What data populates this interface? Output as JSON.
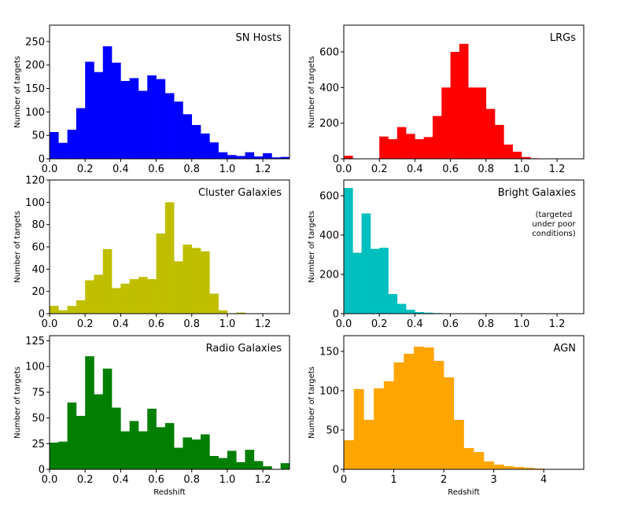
{
  "chart_data": [
    {
      "type": "bar",
      "title": "SN Hosts",
      "xlabel": "",
      "ylabel": "Number of targets",
      "xlim": [
        0,
        1.35
      ],
      "ylim": [
        0,
        285
      ],
      "bin_width": 0.05,
      "color": "#0000ff",
      "x_ticks": [
        "0.0",
        "0.2",
        "0.4",
        "0.6",
        "0.8",
        "1.0",
        "1.2"
      ],
      "y_ticks": [
        "0",
        "50",
        "100",
        "150",
        "200",
        "250"
      ],
      "values": [
        57,
        34,
        62,
        108,
        207,
        185,
        240,
        205,
        166,
        172,
        145,
        178,
        170,
        140,
        122,
        95,
        72,
        54,
        35,
        14,
        8,
        6,
        14,
        5,
        12,
        3,
        4
      ]
    },
    {
      "type": "bar",
      "title": "LRGs",
      "xlabel": "",
      "ylabel": "Number of targets",
      "xlim": [
        0,
        1.35
      ],
      "ylim": [
        0,
        750
      ],
      "bin_width": 0.05,
      "color": "#ff0000",
      "x_ticks": [
        "0.0",
        "0.2",
        "0.4",
        "0.6",
        "0.8",
        "1.0",
        "1.2"
      ],
      "y_ticks": [
        "0",
        "200",
        "400",
        "600"
      ],
      "values": [
        17,
        0,
        0,
        0,
        125,
        110,
        178,
        140,
        110,
        122,
        240,
        400,
        600,
        645,
        400,
        400,
        280,
        190,
        80,
        40,
        10,
        3,
        2,
        0,
        0,
        0,
        0
      ]
    },
    {
      "type": "bar",
      "title": "Cluster Galaxies",
      "xlabel": "",
      "ylabel": "Number of targets",
      "xlim": [
        0,
        1.35
      ],
      "ylim": [
        0,
        120
      ],
      "bin_width": 0.05,
      "color": "#bfbf00",
      "x_ticks": [
        "0.0",
        "0.2",
        "0.4",
        "0.6",
        "0.8",
        "1.0",
        "1.2"
      ],
      "y_ticks": [
        "0",
        "20",
        "40",
        "60",
        "80",
        "100",
        "120"
      ],
      "values": [
        7,
        3,
        7,
        12,
        30,
        35,
        58,
        23,
        27,
        31,
        33,
        31,
        72,
        100,
        47,
        62,
        59,
        56,
        18,
        3,
        0,
        1,
        0,
        0,
        0,
        0,
        0
      ]
    },
    {
      "type": "bar",
      "title": "Bright Galaxies",
      "annotation": "(targeted\nunder poor\nconditions)",
      "xlabel": "",
      "ylabel": "Number of targets",
      "xlim": [
        0,
        1.35
      ],
      "ylim": [
        0,
        680
      ],
      "bin_width": 0.05,
      "color": "#00bfbf",
      "x_ticks": [
        "0.0",
        "0.2",
        "0.4",
        "0.6",
        "0.8",
        "1.0",
        "1.2"
      ],
      "y_ticks": [
        "0",
        "200",
        "400",
        "600"
      ],
      "values": [
        640,
        310,
        510,
        330,
        335,
        100,
        50,
        20,
        8,
        5,
        3,
        2,
        1,
        1,
        1,
        0,
        0,
        0,
        0,
        0,
        0,
        0,
        0,
        0,
        0,
        0,
        0
      ]
    },
    {
      "type": "bar",
      "title": "Radio Galaxies",
      "xlabel": "Redshift",
      "ylabel": "Number of targets",
      "xlim": [
        0,
        1.35
      ],
      "ylim": [
        0,
        130
      ],
      "bin_width": 0.05,
      "color": "#007f00",
      "x_ticks": [
        "0.0",
        "0.2",
        "0.4",
        "0.6",
        "0.8",
        "1.0",
        "1.2"
      ],
      "y_ticks": [
        "0",
        "25",
        "50",
        "75",
        "100",
        "125"
      ],
      "values": [
        26,
        27,
        65,
        52,
        110,
        73,
        98,
        60,
        37,
        47,
        37,
        59,
        41,
        45,
        21,
        31,
        29,
        34,
        13,
        11,
        18,
        7,
        19,
        8,
        3,
        0,
        6
      ]
    },
    {
      "type": "bar",
      "title": "AGN",
      "xlabel": "Redshift",
      "ylabel": "Number of targets",
      "xlim": [
        0,
        4.8
      ],
      "ylim": [
        0,
        170
      ],
      "bin_width": 0.2,
      "color": "#ffa500",
      "x_ticks": [
        "0",
        "1",
        "2",
        "3",
        "4"
      ],
      "y_ticks": [
        "0",
        "50",
        "100",
        "150"
      ],
      "values": [
        37,
        102,
        63,
        103,
        112,
        136,
        147,
        156,
        155,
        138,
        117,
        63,
        27,
        22,
        10,
        6,
        4,
        3,
        2,
        1,
        0,
        0,
        0,
        0
      ]
    }
  ]
}
